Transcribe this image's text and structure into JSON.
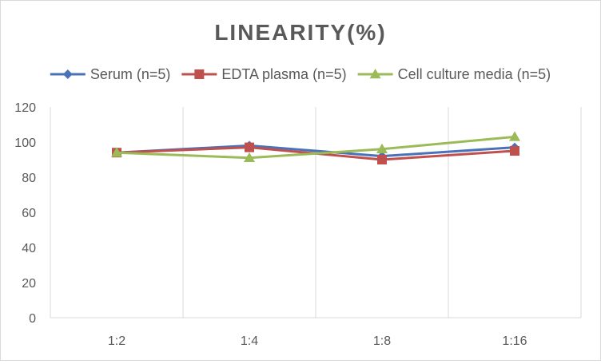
{
  "chart_data": {
    "type": "line",
    "title": "LINEARITY(%)",
    "categories": [
      "1:2",
      "1:4",
      "1:8",
      "1:16"
    ],
    "series": [
      {
        "name": "Serum (n=5)",
        "values": [
          94,
          98,
          92,
          97
        ],
        "color": "#4a72b8",
        "marker": "diamond"
      },
      {
        "name": "EDTA plasma (n=5)",
        "values": [
          94,
          97,
          90,
          95
        ],
        "color": "#c0504d",
        "marker": "square"
      },
      {
        "name": "Cell culture media (n=5)",
        "values": [
          94,
          91,
          96,
          103
        ],
        "color": "#9bbb59",
        "marker": "triangle"
      }
    ],
    "xlabel": "",
    "ylabel": "",
    "ylim": [
      0,
      120
    ],
    "yticks": [
      0,
      20,
      40,
      60,
      80,
      100,
      120
    ],
    "grid": "vertical",
    "legend_position": "top"
  }
}
